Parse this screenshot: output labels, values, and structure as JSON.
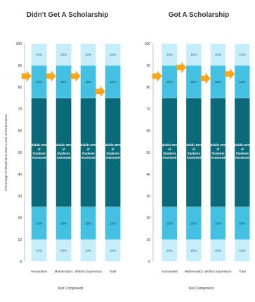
{
  "colors": {
    "light": "#c6eefa",
    "mid": "#44c0e2",
    "dark": "#0b6a7a",
    "arrow": "#f5a623",
    "divider": "#ffffff",
    "axis": "#999999",
    "text": "#333333"
  },
  "chart_data": [
    {
      "type": "bar",
      "title": "Didn't Get A Scholarship",
      "xlabel": "Test Component",
      "ylabel": "Percentage of Students in Each Level of Performance",
      "ylim": [
        0,
        100
      ],
      "yticks": [
        0,
        10,
        20,
        30,
        40,
        50,
        60,
        70,
        80,
        90,
        100
      ],
      "categories": [
        "Humanities",
        "Mathematics",
        "Written Expression",
        "Total"
      ],
      "stack": [
        {
          "name": "bottom-10",
          "value": 10,
          "label": "10%",
          "color": "light"
        },
        {
          "name": "lower-15",
          "value": 15,
          "label": "15%",
          "color": "mid"
        },
        {
          "name": "middle-50",
          "value": 50,
          "label": "Middle 50% of Students Assessed",
          "color": "dark"
        },
        {
          "name": "upper-15",
          "value": 15,
          "label": "15%",
          "color": "mid"
        },
        {
          "name": "top-10",
          "value": 10,
          "label": "10%",
          "color": "light"
        }
      ],
      "arrow_values": [
        85,
        85,
        85,
        78
      ]
    },
    {
      "type": "bar",
      "title": "Got A Scholarship",
      "xlabel": "Test Component",
      "ylabel": "",
      "ylim": [
        0,
        100
      ],
      "yticks": [
        0,
        10,
        20,
        30,
        40,
        50,
        60,
        70,
        80,
        90,
        100
      ],
      "categories": [
        "Humanities",
        "Mathematics",
        "Written Expression",
        "Total"
      ],
      "stack": [
        {
          "name": "bottom-10",
          "value": 10,
          "label": "10%",
          "color": "light"
        },
        {
          "name": "lower-15",
          "value": 15,
          "label": "15%",
          "color": "mid"
        },
        {
          "name": "middle-50",
          "value": 50,
          "label": "Middle 50% of Students Assessed",
          "color": "dark"
        },
        {
          "name": "upper-15",
          "value": 15,
          "label": "15%",
          "color": "mid"
        },
        {
          "name": "top-10",
          "value": 10,
          "label": "10%",
          "color": "light"
        }
      ],
      "arrow_values": [
        85,
        89,
        84,
        86
      ]
    }
  ]
}
